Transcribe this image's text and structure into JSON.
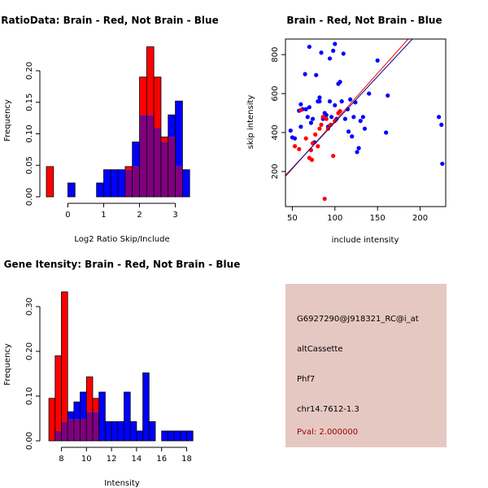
{
  "chart_data": [
    {
      "type": "histogram",
      "title": "RatioData: Brain - Red, Not Brain - Blue",
      "xlabel": "Log2 Ratio Skip/Include",
      "ylabel": "Frequency",
      "xlim": [
        -0.6,
        3.6
      ],
      "ylim": [
        0,
        0.24
      ],
      "xticks": [
        0,
        1,
        2,
        3
      ],
      "yticks": [
        0.0,
        0.05,
        0.1,
        0.15,
        0.2
      ],
      "ytick_labels": [
        "0.00",
        "0.05",
        "0.10",
        "0.15",
        "0.20"
      ],
      "bin_width": 0.2,
      "series": [
        {
          "name": "Not Brain",
          "color": "#0000ff",
          "bins": [
            {
              "start": 0.0,
              "value": 0.022
            },
            {
              "start": 0.8,
              "value": 0.022
            },
            {
              "start": 1.0,
              "value": 0.043
            },
            {
              "start": 1.2,
              "value": 0.043
            },
            {
              "start": 1.4,
              "value": 0.043
            },
            {
              "start": 1.6,
              "value": 0.043
            },
            {
              "start": 1.8,
              "value": 0.087
            },
            {
              "start": 2.0,
              "value": 0.13
            },
            {
              "start": 2.2,
              "value": 0.13
            },
            {
              "start": 2.4,
              "value": 0.109
            },
            {
              "start": 2.6,
              "value": 0.087
            },
            {
              "start": 2.8,
              "value": 0.13
            },
            {
              "start": 3.0,
              "value": 0.152
            },
            {
              "start": 3.2,
              "value": 0.043
            }
          ]
        },
        {
          "name": "Brain",
          "color": "#ff0000",
          "bins": [
            {
              "start": -0.6,
              "value": 0.048
            },
            {
              "start": 1.6,
              "value": 0.048
            },
            {
              "start": 1.8,
              "value": 0.048
            },
            {
              "start": 2.0,
              "value": 0.19
            },
            {
              "start": 2.2,
              "value": 0.238
            },
            {
              "start": 2.4,
              "value": 0.19
            },
            {
              "start": 2.6,
              "value": 0.095
            },
            {
              "start": 2.8,
              "value": 0.095
            },
            {
              "start": 3.0,
              "value": 0.048
            }
          ]
        }
      ],
      "overlap_color": "#7f007f"
    },
    {
      "type": "scatter",
      "title": "Brain - Red, Not Brain - Blue",
      "xlabel": "include intensity",
      "ylabel": "skip intensity",
      "xlim": [
        42,
        230
      ],
      "ylim": [
        20,
        880
      ],
      "xticks": [
        50,
        100,
        150,
        200
      ],
      "yticks": [
        200,
        400,
        600,
        800
      ],
      "series": [
        {
          "name": "Not Brain",
          "color": "#0000ff",
          "points": [
            [
              48,
              410
            ],
            [
              50,
              375
            ],
            [
              53,
              370
            ],
            [
              58,
              512
            ],
            [
              60,
              545
            ],
            [
              62,
              520
            ],
            [
              65,
              700
            ],
            [
              66,
              520
            ],
            [
              68,
              480
            ],
            [
              70,
              530
            ],
            [
              72,
              450
            ],
            [
              74,
              470
            ],
            [
              78,
              695
            ],
            [
              80,
              560
            ],
            [
              82,
              560
            ],
            [
              84,
              810
            ],
            [
              86,
              470
            ],
            [
              88,
              500
            ],
            [
              90,
              490
            ],
            [
              92,
              430
            ],
            [
              94,
              780
            ],
            [
              96,
              480
            ],
            [
              98,
              820
            ],
            [
              100,
              855
            ],
            [
              100,
              540
            ],
            [
              102,
              470
            ],
            [
              104,
              650
            ],
            [
              106,
              660
            ],
            [
              108,
              560
            ],
            [
              110,
              805
            ],
            [
              112,
              470
            ],
            [
              115,
              520
            ],
            [
              116,
              405
            ],
            [
              118,
              570
            ],
            [
              120,
              380
            ],
            [
              122,
              480
            ],
            [
              124,
              555
            ],
            [
              126,
              300
            ],
            [
              128,
              320
            ],
            [
              130,
              460
            ],
            [
              133,
              480
            ],
            [
              135,
              420
            ],
            [
              140,
              600
            ],
            [
              150,
              770
            ],
            [
              160,
              400
            ],
            [
              162,
              590
            ],
            [
              222,
              480
            ],
            [
              225,
              440
            ],
            [
              226,
              240
            ],
            [
              60,
              430
            ],
            [
              76,
              350
            ],
            [
              82,
              580
            ],
            [
              94,
              560
            ],
            [
              70,
              840
            ]
          ]
        },
        {
          "name": "Brain",
          "color": "#ff0000",
          "points": [
            [
              53,
              330
            ],
            [
              58,
              315
            ],
            [
              60,
              515
            ],
            [
              66,
              370
            ],
            [
              70,
              270
            ],
            [
              72,
              310
            ],
            [
              73,
              260
            ],
            [
              74,
              345
            ],
            [
              77,
              390
            ],
            [
              80,
              330
            ],
            [
              82,
              420
            ],
            [
              84,
              440
            ],
            [
              86,
              480
            ],
            [
              88,
              60
            ],
            [
              90,
              470
            ],
            [
              92,
              420
            ],
            [
              95,
              440
            ],
            [
              98,
              280
            ],
            [
              100,
              460
            ],
            [
              104,
              500
            ],
            [
              106,
              510
            ]
          ]
        }
      ],
      "fit_lines": [
        {
          "name": "Brain fit",
          "color": "#ff0000",
          "points": [
            [
              42,
              175
            ],
            [
              187,
              885
            ]
          ]
        },
        {
          "name": "Not Brain fit",
          "color": "#00008b",
          "points": [
            [
              42,
              180
            ],
            [
              192,
              885
            ]
          ]
        }
      ]
    },
    {
      "type": "histogram",
      "title": "Gene Itensity: Brain - Red, Not Brain - Blue",
      "xlabel": "Intensity",
      "ylabel": "Frequency",
      "xlim": [
        6.8,
        19.2
      ],
      "ylim": [
        0,
        0.34
      ],
      "xticks": [
        8,
        10,
        12,
        14,
        16,
        18
      ],
      "yticks": [
        0.0,
        0.1,
        0.2,
        0.3
      ],
      "ytick_labels": [
        "0.00",
        "0.10",
        "0.20",
        "0.30"
      ],
      "bin_width": 0.5,
      "series": [
        {
          "name": "Not Brain",
          "color": "#0000ff",
          "bins": [
            {
              "start": 7.5,
              "value": 0.022
            },
            {
              "start": 8.0,
              "value": 0.043
            },
            {
              "start": 8.5,
              "value": 0.065
            },
            {
              "start": 9.0,
              "value": 0.087
            },
            {
              "start": 9.5,
              "value": 0.109
            },
            {
              "start": 10.0,
              "value": 0.065
            },
            {
              "start": 10.5,
              "value": 0.065
            },
            {
              "start": 11.0,
              "value": 0.109
            },
            {
              "start": 11.5,
              "value": 0.043
            },
            {
              "start": 12.0,
              "value": 0.043
            },
            {
              "start": 12.5,
              "value": 0.043
            },
            {
              "start": 13.0,
              "value": 0.109
            },
            {
              "start": 13.5,
              "value": 0.043
            },
            {
              "start": 14.0,
              "value": 0.022
            },
            {
              "start": 14.5,
              "value": 0.152
            },
            {
              "start": 15.0,
              "value": 0.043
            },
            {
              "start": 16.0,
              "value": 0.022
            },
            {
              "start": 16.5,
              "value": 0.022
            },
            {
              "start": 17.0,
              "value": 0.022
            },
            {
              "start": 17.5,
              "value": 0.022
            },
            {
              "start": 18.0,
              "value": 0.022
            }
          ]
        },
        {
          "name": "Brain",
          "color": "#ff0000",
          "bins": [
            {
              "start": 7.0,
              "value": 0.095
            },
            {
              "start": 7.5,
              "value": 0.19
            },
            {
              "start": 8.0,
              "value": 0.333
            },
            {
              "start": 8.5,
              "value": 0.048
            },
            {
              "start": 9.0,
              "value": 0.048
            },
            {
              "start": 9.5,
              "value": 0.048
            },
            {
              "start": 10.0,
              "value": 0.143
            },
            {
              "start": 10.5,
              "value": 0.095
            }
          ]
        }
      ],
      "overlap_color": "#7f007f"
    }
  ],
  "info_panel": {
    "background": "#e6c8c2",
    "probe_id": "G6927290@J918321_RC@i_at",
    "event_type": "altCassette",
    "gene": "Phf7",
    "location": "chr14.7612-1.3",
    "pval": "Pval: 2.000000"
  }
}
